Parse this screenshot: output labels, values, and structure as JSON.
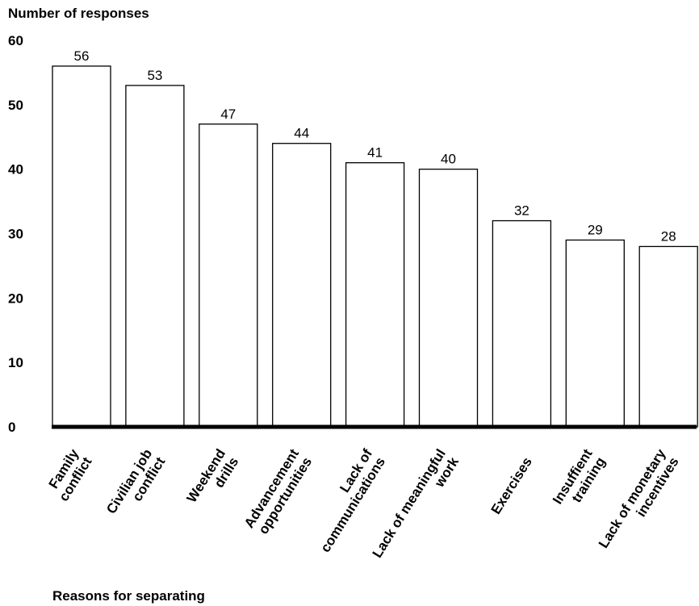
{
  "chart_data": {
    "type": "bar",
    "ylabel": "Number of responses",
    "xlabel": "Reasons for separating",
    "ylim": [
      0,
      60
    ],
    "yticks": [
      0,
      10,
      20,
      30,
      40,
      50,
      60
    ],
    "grid": false,
    "legend": "none",
    "bar_fill": "#ffffff",
    "bar_stroke": "#000000",
    "categories": [
      [
        "Family",
        "conflict"
      ],
      [
        "Civilian job",
        "conflict"
      ],
      [
        "Weekend",
        "drills"
      ],
      [
        "Advancement",
        "opportunities"
      ],
      [
        "Lack of",
        "communications"
      ],
      [
        "Lack of meaningful",
        "work"
      ],
      [
        "Exercises"
      ],
      [
        "Insuffient",
        "training"
      ],
      [
        "Lack of monetary",
        "incentives"
      ]
    ],
    "values": [
      56,
      53,
      47,
      44,
      41,
      40,
      32,
      29,
      28
    ]
  }
}
